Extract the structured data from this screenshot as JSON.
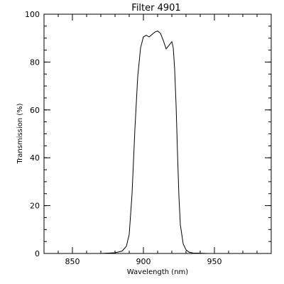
{
  "chart_data": {
    "type": "line",
    "title": "Filter 4901",
    "xlabel": "Wavelength (nm)",
    "ylabel": "Transmission (%)",
    "xlim": [
      830,
      990
    ],
    "ylim": [
      0,
      100
    ],
    "x_ticks": [
      850,
      900,
      950
    ],
    "y_ticks": [
      0,
      20,
      40,
      60,
      80,
      100
    ],
    "x_minor_step": 10,
    "y_minor_step": 5,
    "grid": false,
    "line_color": "#000000",
    "series": [
      {
        "x": [
          870,
          880,
          885,
          888,
          890,
          892,
          894,
          896,
          898,
          900,
          902,
          904,
          906,
          908,
          910,
          912,
          914,
          916,
          918,
          920,
          921,
          922,
          923,
          924,
          925,
          926,
          928,
          930,
          932,
          935,
          940,
          945
        ],
        "y": [
          0,
          0.3,
          1,
          3,
          8,
          25,
          52,
          74,
          86,
          90.5,
          91.2,
          90.5,
          91.5,
          92.5,
          93,
          92,
          89,
          85.5,
          87,
          88.5,
          86,
          77,
          62,
          42,
          24,
          12,
          4,
          1.5,
          0.6,
          0.2,
          0.1,
          0
        ]
      }
    ]
  }
}
